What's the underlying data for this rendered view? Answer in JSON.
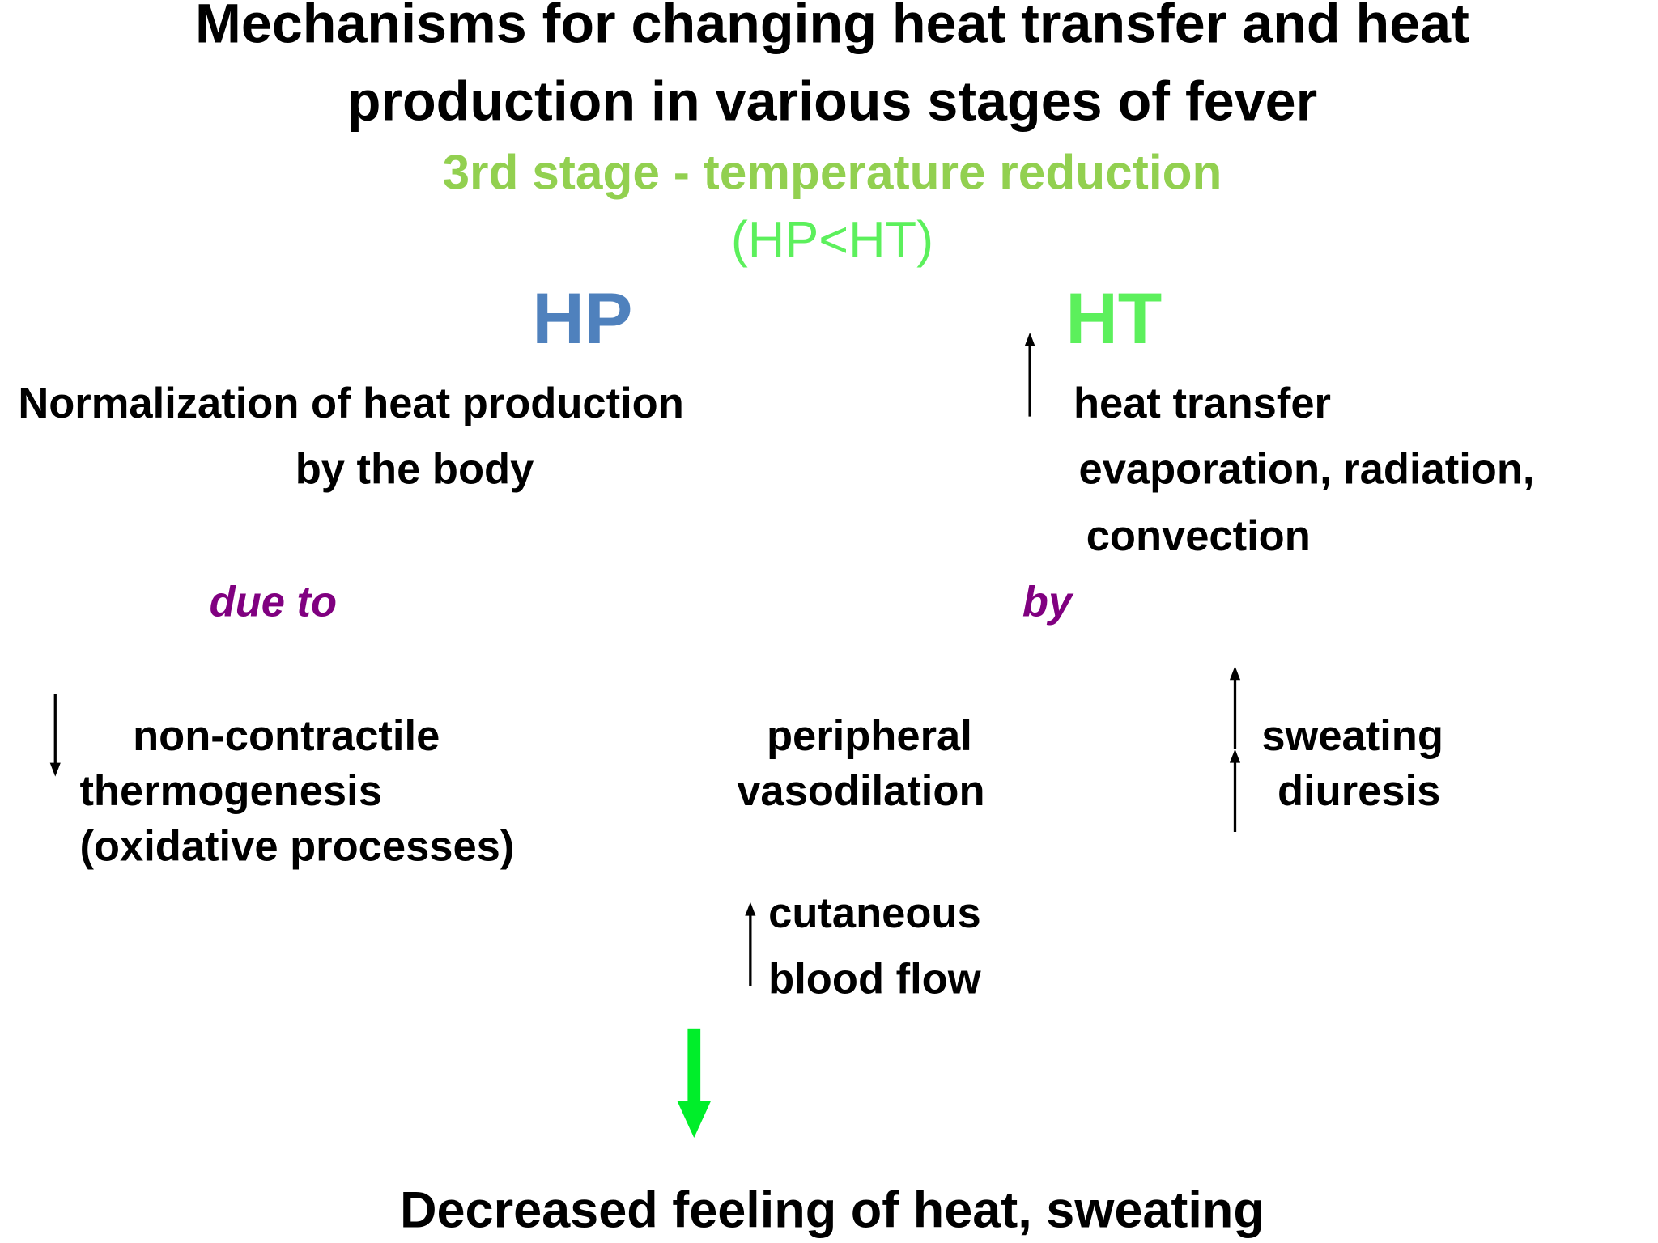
{
  "title": [
    "Mechanisms for changing heat transfer and heat",
    "production in various stages of fever"
  ],
  "subtitle": "3rd stage - temperature reduction",
  "relation": "(HP<HT)",
  "hp": {
    "label": "HP",
    "lines": [
      "Normalization of heat production",
      "by the body"
    ],
    "connector": "due to",
    "mechanism": [
      "non-contractile",
      "thermogenesis",
      "(oxidative processes)"
    ]
  },
  "ht": {
    "label": "HT",
    "lines": [
      "heat transfer",
      "evaporation, radiation,",
      "convection"
    ],
    "connector": "by",
    "mechanisms": [
      {
        "lines": [
          "peripheral",
          "vasodilation"
        ]
      },
      {
        "lines": [
          "sweating",
          "diuresis"
        ]
      }
    ],
    "cutaneous": [
      "cutaneous",
      "blood flow"
    ]
  },
  "conclusion": "Decreased feeling of heat, sweating"
}
